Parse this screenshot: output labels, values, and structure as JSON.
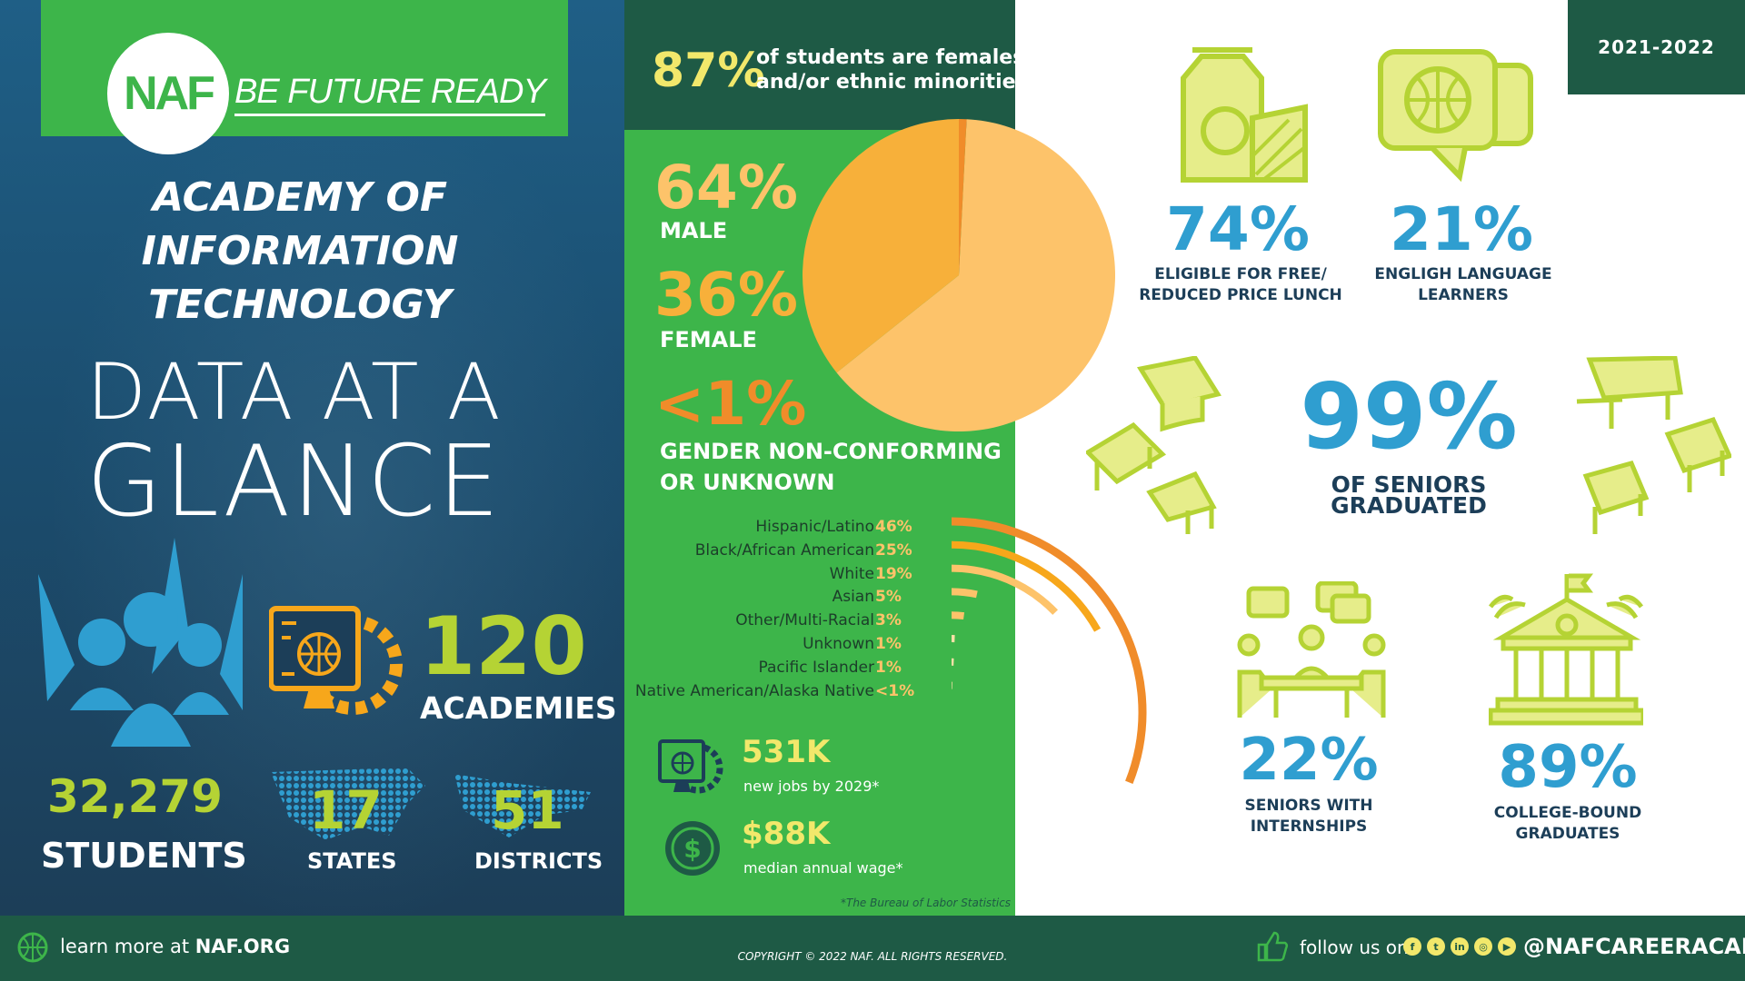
{
  "brand": {
    "logo_text": "NAF",
    "tagline": "BE FUTURE READY"
  },
  "program": {
    "title_lines": [
      "ACADEMY OF",
      "INFORMATION",
      "TECHNOLOGY"
    ],
    "heading_1": "DATA AT A",
    "heading_2": "GLANCE"
  },
  "stats": {
    "academies": {
      "value": "120",
      "label": "ACADEMIES"
    },
    "students": {
      "value": "32,279",
      "label": "STUDENTS"
    },
    "states": {
      "value": "17",
      "label": "STATES"
    },
    "districts": {
      "value": "51",
      "label": "DISTRICTS"
    }
  },
  "minority": {
    "pct": "87%",
    "text_1": "of students are females",
    "text_2": "and/or ethnic minorities"
  },
  "gender": {
    "male": {
      "pct": "64%",
      "label": "MALE",
      "value": 64,
      "color": "#fdc36a"
    },
    "female": {
      "pct": "36%",
      "label": "FEMALE",
      "value": 36,
      "color": "#f7b03a"
    },
    "gnc": {
      "pct": "<1%",
      "label_1": "GENDER NON-CONFORMING",
      "label_2": "OR UNKNOWN",
      "value": 0.8,
      "color": "#f08c2a"
    }
  },
  "ethnicity": [
    {
      "name": "Hispanic/Latino",
      "pct": "46%",
      "value": 46
    },
    {
      "name": "Black/African American",
      "pct": "25%",
      "value": 25
    },
    {
      "name": "White",
      "pct": "19%",
      "value": 19
    },
    {
      "name": "Asian",
      "pct": "5%",
      "value": 5
    },
    {
      "name": "Other/Multi-Racial",
      "pct": "3%",
      "value": 3
    },
    {
      "name": "Unknown",
      "pct": "1%",
      "value": 1
    },
    {
      "name": "Pacific Islander",
      "pct": "1%",
      "value": 1
    },
    {
      "name": "Native American/Alaska Native",
      "pct": "<1%",
      "value": 0.5
    }
  ],
  "jobs": {
    "value": "531K",
    "label": "new jobs by 2029*"
  },
  "wage": {
    "value": "$88K",
    "label": "median annual wage*"
  },
  "bls_note": "*The Bureau of Labor Statistics",
  "year": "2021-2022",
  "right": {
    "lunch": {
      "pct": "74%",
      "label_1": "ELIGIBLE FOR FREE/",
      "label_2": "REDUCED PRICE LUNCH"
    },
    "ell": {
      "pct": "21%",
      "label_1": "ENGLIGH LANGUAGE",
      "label_2": "LEARNERS"
    },
    "graduated": {
      "pct": "99%",
      "label": "OF SENIORS GRADUATED"
    },
    "internships": {
      "pct": "22%",
      "label_1": "SENIORS WITH",
      "label_2": "INTERNSHIPS"
    },
    "college": {
      "pct": "89%",
      "label_1": "COLLEGE-BOUND",
      "label_2": "GRADUATES"
    }
  },
  "footer": {
    "learn_prefix": "learn more at ",
    "learn_site": "NAF.ORG",
    "copyright": "COPYRIGHT © 2022 NAF. ALL RIGHTS RESERVED.",
    "follow": "follow us on",
    "social_icons": [
      "facebook-icon",
      "twitter-icon",
      "linkedin-icon",
      "instagram-icon",
      "youtube-icon"
    ],
    "handle": "@NAFCAREERACADS"
  },
  "colors": {
    "green": "#3db54a",
    "dark_green": "#1e5a45",
    "lime": "#b5d334",
    "blue": "#2f9ed0",
    "navy": "#1c3e58"
  }
}
